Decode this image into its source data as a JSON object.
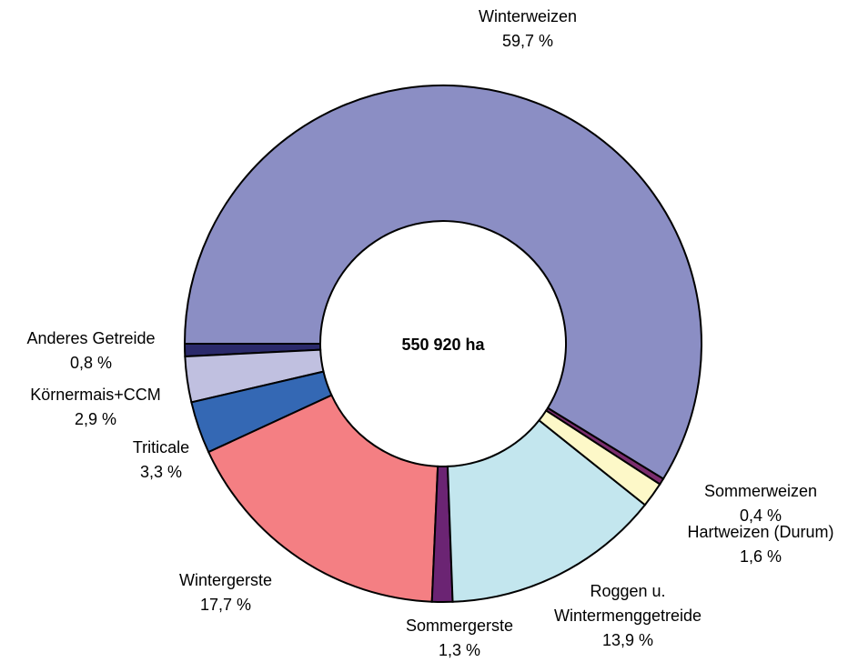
{
  "chart_data": {
    "type": "donut",
    "center_label": "550 920 ha",
    "categories": [
      "Winterweizen",
      "Sommerweizen",
      "Hartweizen (Durum)",
      "Roggen u. Wintermenggetreide",
      "Sommergerste",
      "Wintergerste",
      "Triticale",
      "Körnermais+CCM",
      "Anderes Getreide"
    ],
    "values": [
      59.7,
      0.4,
      1.6,
      13.9,
      1.3,
      17.7,
      3.3,
      2.9,
      0.8
    ],
    "value_labels": [
      "59,7 %",
      "0,4 %",
      "1,6 %",
      "13,9 %",
      "1,3 %",
      "17,7 %",
      "3,3 %",
      "2,9 %",
      "0,8 %"
    ],
    "colors": [
      "#8b8ec4",
      "#7b2d6e",
      "#fdf8c8",
      "#c3e6ee",
      "#6b2473",
      "#f47f83",
      "#3468b4",
      "#c0c0e0",
      "#2b2a6b"
    ]
  }
}
